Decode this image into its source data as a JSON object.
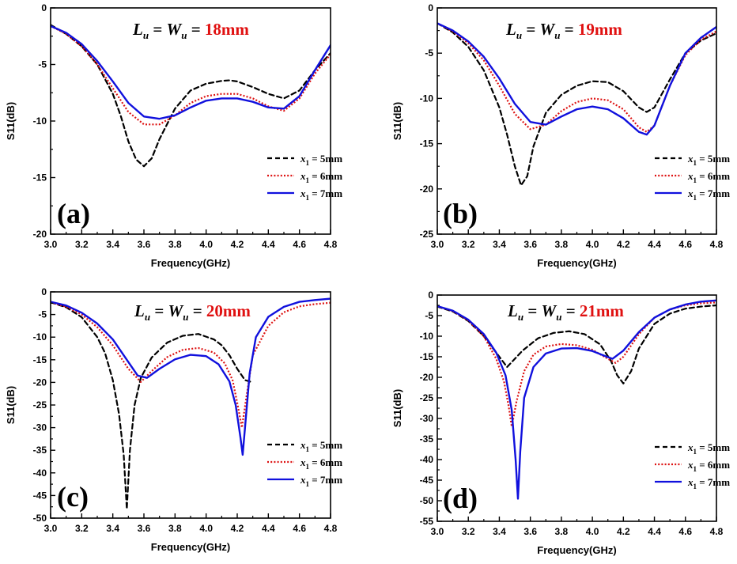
{
  "colors": {
    "axis": "#000000",
    "title_value": "#e01010"
  },
  "chart_data": [
    {
      "type": "line",
      "panel_label": "(a)",
      "title": {
        "lhs_a": "L",
        "lhs_a_sub": "u",
        "eq1": " = ",
        "lhs_b": "W",
        "lhs_b_sub": "u",
        "eq2": " = ",
        "value": "18mm"
      },
      "xlabel": "Frequency(GHz)",
      "ylabel": "S11(dB)",
      "xlim": [
        3.0,
        4.8
      ],
      "ylim": [
        -20,
        0
      ],
      "xticks": [
        3.0,
        3.2,
        3.4,
        3.6,
        3.8,
        4.0,
        4.2,
        4.4,
        4.6,
        4.8
      ],
      "xtick_labels": [
        "3.0",
        "3.2",
        "3.4",
        "3.6",
        "3.8",
        "4.0",
        "4.2",
        "4.4",
        "4.6",
        "4.8"
      ],
      "yticks": [
        0,
        -5,
        -10,
        -15,
        -20
      ],
      "ytick_labels": [
        "0",
        "-5",
        "-10",
        "-15",
        "-20"
      ],
      "legend_position": "bottom-right",
      "series": [
        {
          "name_var": "x",
          "name_sub": "1",
          "name_rest": " = 5mm",
          "color": "#000000",
          "dash": "dashed",
          "x": [
            3.0,
            3.1,
            3.2,
            3.3,
            3.4,
            3.45,
            3.5,
            3.55,
            3.6,
            3.65,
            3.7,
            3.8,
            3.9,
            4.0,
            4.1,
            4.15,
            4.2,
            4.3,
            4.4,
            4.5,
            4.6,
            4.7,
            4.8
          ],
          "y": [
            -1.5,
            -2.3,
            -3.4,
            -5.0,
            -7.6,
            -9.5,
            -11.8,
            -13.4,
            -14.0,
            -13.3,
            -11.6,
            -8.9,
            -7.3,
            -6.7,
            -6.45,
            -6.4,
            -6.5,
            -7.0,
            -7.6,
            -8.0,
            -7.3,
            -5.5,
            -4.0
          ]
        },
        {
          "name_var": "x",
          "name_sub": "1",
          "name_rest": " = 6mm",
          "color": "#dd1111",
          "dash": "dotted",
          "x": [
            3.0,
            3.1,
            3.2,
            3.3,
            3.4,
            3.5,
            3.6,
            3.7,
            3.8,
            3.9,
            4.0,
            4.1,
            4.2,
            4.3,
            4.4,
            4.5,
            4.6,
            4.7,
            4.8
          ],
          "y": [
            -1.6,
            -2.3,
            -3.4,
            -5.0,
            -7.1,
            -9.2,
            -10.3,
            -10.3,
            -9.5,
            -8.4,
            -7.8,
            -7.6,
            -7.6,
            -8.0,
            -8.7,
            -9.1,
            -8.0,
            -5.8,
            -4.1
          ]
        },
        {
          "name_var": "x",
          "name_sub": "1",
          "name_rest": " = 7mm",
          "color": "#1010dd",
          "dash": "solid",
          "x": [
            3.0,
            3.1,
            3.2,
            3.3,
            3.4,
            3.5,
            3.6,
            3.7,
            3.8,
            3.9,
            4.0,
            4.1,
            4.2,
            4.3,
            4.4,
            4.5,
            4.6,
            4.7,
            4.8
          ],
          "y": [
            -1.6,
            -2.2,
            -3.2,
            -4.7,
            -6.5,
            -8.4,
            -9.6,
            -9.8,
            -9.5,
            -8.8,
            -8.2,
            -8.0,
            -8.0,
            -8.3,
            -8.8,
            -8.9,
            -7.8,
            -5.5,
            -3.3
          ]
        }
      ]
    },
    {
      "type": "line",
      "panel_label": "(b)",
      "title": {
        "lhs_a": "L",
        "lhs_a_sub": "u",
        "eq1": " = ",
        "lhs_b": "W",
        "lhs_b_sub": "u",
        "eq2": " = ",
        "value": "19mm"
      },
      "xlabel": "Frequency(GHz)",
      "ylabel": "S11(dB)",
      "xlim": [
        3.0,
        4.8
      ],
      "ylim": [
        -25,
        0
      ],
      "xticks": [
        3.0,
        3.2,
        3.4,
        3.6,
        3.8,
        4.0,
        4.2,
        4.4,
        4.6,
        4.8
      ],
      "xtick_labels": [
        "3.0",
        "3.2",
        "3.4",
        "3.6",
        "3.8",
        "4.0",
        "4.2",
        "4.4",
        "4.6",
        "4.8"
      ],
      "yticks": [
        0,
        -5,
        -10,
        -15,
        -20,
        -25
      ],
      "ytick_labels": [
        "0",
        "-5",
        "-10",
        "-15",
        "-20",
        "-25"
      ],
      "legend_position": "bottom-right",
      "series": [
        {
          "name_var": "x",
          "name_sub": "1",
          "name_rest": " = 5mm",
          "color": "#000000",
          "dash": "dashed",
          "x": [
            3.0,
            3.1,
            3.2,
            3.3,
            3.4,
            3.45,
            3.5,
            3.54,
            3.58,
            3.62,
            3.7,
            3.8,
            3.9,
            4.0,
            4.1,
            4.2,
            4.3,
            4.35,
            4.4,
            4.5,
            4.6,
            4.7,
            4.8
          ],
          "y": [
            -1.7,
            -2.7,
            -4.3,
            -6.9,
            -11.0,
            -14.0,
            -17.5,
            -19.6,
            -18.6,
            -15.3,
            -11.6,
            -9.6,
            -8.6,
            -8.1,
            -8.2,
            -9.2,
            -11.0,
            -11.5,
            -11.0,
            -7.9,
            -5.0,
            -3.6,
            -2.8
          ]
        },
        {
          "name_var": "x",
          "name_sub": "1",
          "name_rest": " = 6mm",
          "color": "#dd1111",
          "dash": "dotted",
          "x": [
            3.0,
            3.1,
            3.2,
            3.3,
            3.4,
            3.5,
            3.6,
            3.7,
            3.8,
            3.9,
            4.0,
            4.1,
            4.2,
            4.3,
            4.35,
            4.4,
            4.5,
            4.6,
            4.7,
            4.8
          ],
          "y": [
            -1.7,
            -2.6,
            -3.9,
            -5.8,
            -8.6,
            -11.7,
            -13.4,
            -12.9,
            -11.4,
            -10.4,
            -10.0,
            -10.2,
            -11.2,
            -13.2,
            -13.7,
            -13.0,
            -8.6,
            -5.2,
            -3.5,
            -2.6
          ]
        },
        {
          "name_var": "x",
          "name_sub": "1",
          "name_rest": " = 7mm",
          "color": "#1010dd",
          "dash": "solid",
          "x": [
            3.0,
            3.1,
            3.2,
            3.3,
            3.4,
            3.5,
            3.6,
            3.7,
            3.8,
            3.9,
            4.0,
            4.1,
            4.2,
            4.3,
            4.35,
            4.4,
            4.5,
            4.6,
            4.7,
            4.8
          ],
          "y": [
            -1.7,
            -2.5,
            -3.7,
            -5.4,
            -7.8,
            -10.6,
            -12.6,
            -12.9,
            -12.0,
            -11.2,
            -10.9,
            -11.2,
            -12.2,
            -13.7,
            -14.0,
            -13.0,
            -8.6,
            -5.0,
            -3.3,
            -2.1
          ]
        }
      ]
    },
    {
      "type": "line",
      "panel_label": "(c)",
      "title": {
        "lhs_a": "L",
        "lhs_a_sub": "u",
        "eq1": " = ",
        "lhs_b": "W",
        "lhs_b_sub": "u",
        "eq2": " = ",
        "value": "20mm"
      },
      "xlabel": "Frequency(GHz)",
      "ylabel": "S11(dB)",
      "xlim": [
        3.0,
        4.8
      ],
      "ylim": [
        -50,
        0
      ],
      "xticks": [
        3.0,
        3.2,
        3.4,
        3.6,
        3.8,
        4.0,
        4.2,
        4.4,
        4.6,
        4.8
      ],
      "xtick_labels": [
        "3.0",
        "3.2",
        "3.4",
        "3.6",
        "3.8",
        "4.0",
        "4.2",
        "4.4",
        "4.6",
        "4.8"
      ],
      "yticks": [
        0,
        -5,
        -10,
        -15,
        -20,
        -25,
        -30,
        -35,
        -40,
        -45,
        -50
      ],
      "ytick_labels": [
        "0",
        "-5",
        "-10",
        "-15",
        "-20",
        "-25",
        "-30",
        "-35",
        "-40",
        "-45",
        "-50"
      ],
      "legend_position": "bottom-right",
      "series": [
        {
          "name_var": "x",
          "name_sub": "1",
          "name_rest": " = 5mm",
          "color": "#000000",
          "dash": "dashed",
          "x": [
            3.0,
            3.1,
            3.2,
            3.3,
            3.35,
            3.4,
            3.44,
            3.47,
            3.49,
            3.51,
            3.54,
            3.58,
            3.65,
            3.75,
            3.85,
            3.95,
            4.05,
            4.1,
            4.15,
            4.2,
            4.25,
            4.3
          ],
          "y": [
            -2.3,
            -3.4,
            -5.6,
            -10.0,
            -13.5,
            -19.5,
            -27.0,
            -36.0,
            -48.0,
            -35.0,
            -25.0,
            -19.0,
            -14.5,
            -11.2,
            -9.7,
            -9.3,
            -10.5,
            -11.8,
            -14.0,
            -17.0,
            -19.5,
            -20.0
          ]
        },
        {
          "name_var": "x",
          "name_sub": "1",
          "name_rest": " = 6mm",
          "color": "#dd1111",
          "dash": "dotted",
          "x": [
            3.0,
            3.1,
            3.2,
            3.3,
            3.4,
            3.5,
            3.58,
            3.65,
            3.75,
            3.85,
            3.95,
            4.05,
            4.12,
            4.17,
            4.2,
            4.23,
            4.26,
            4.3,
            4.4,
            4.5,
            4.6,
            4.7,
            4.8
          ],
          "y": [
            -2.3,
            -3.3,
            -5.0,
            -7.8,
            -11.8,
            -17.0,
            -19.9,
            -17.5,
            -14.4,
            -12.8,
            -12.4,
            -13.4,
            -15.8,
            -19.5,
            -24.5,
            -30.0,
            -23.0,
            -14.0,
            -7.5,
            -4.5,
            -3.2,
            -2.7,
            -2.4
          ]
        },
        {
          "name_var": "x",
          "name_sub": "1",
          "name_rest": " = 7mm",
          "color": "#1010dd",
          "dash": "solid",
          "x": [
            3.0,
            3.1,
            3.2,
            3.3,
            3.4,
            3.5,
            3.56,
            3.62,
            3.7,
            3.8,
            3.9,
            4.0,
            4.08,
            4.15,
            4.19,
            4.22,
            4.235,
            4.25,
            4.28,
            4.32,
            4.4,
            4.5,
            4.6,
            4.7,
            4.8
          ],
          "y": [
            -2.2,
            -3.0,
            -4.6,
            -7.0,
            -10.5,
            -15.5,
            -18.5,
            -19.0,
            -17.0,
            -14.9,
            -13.9,
            -14.2,
            -16.0,
            -19.8,
            -25.0,
            -32.0,
            -36.0,
            -30.0,
            -18.0,
            -10.0,
            -5.5,
            -3.3,
            -2.2,
            -1.8,
            -1.5
          ]
        }
      ]
    },
    {
      "type": "line",
      "panel_label": "(d)",
      "title": {
        "lhs_a": "L",
        "lhs_a_sub": "u",
        "eq1": " = ",
        "lhs_b": "W",
        "lhs_b_sub": "u",
        "eq2": " = ",
        "value": "21mm"
      },
      "xlabel": "Frequency(GHz)",
      "ylabel": "S11(dB)",
      "xlim": [
        3.0,
        4.8
      ],
      "ylim": [
        -55,
        0
      ],
      "xticks": [
        3.0,
        3.2,
        3.4,
        3.6,
        3.8,
        4.0,
        4.2,
        4.4,
        4.6,
        4.8
      ],
      "xtick_labels": [
        "3.0",
        "3.2",
        "3.4",
        "3.6",
        "3.8",
        "4.0",
        "4.2",
        "4.4",
        "4.6",
        "4.8"
      ],
      "yticks": [
        0,
        -5,
        -10,
        -15,
        -20,
        -25,
        -30,
        -35,
        -40,
        -45,
        -50,
        -55
      ],
      "ytick_labels": [
        "0",
        "-5",
        "-10",
        "-15",
        "-20",
        "-25",
        "-30",
        "-35",
        "-40",
        "-45",
        "-50",
        "-55"
      ],
      "legend_position": "bottom-right",
      "series": [
        {
          "name_var": "x",
          "name_sub": "1",
          "name_rest": " = 5mm",
          "color": "#000000",
          "dash": "dashed",
          "x": [
            3.0,
            3.1,
            3.2,
            3.3,
            3.4,
            3.45,
            3.55,
            3.65,
            3.75,
            3.85,
            3.95,
            4.05,
            4.12,
            4.16,
            4.2,
            4.25,
            4.3,
            4.4,
            4.5,
            4.6,
            4.7,
            4.8
          ],
          "y": [
            -2.8,
            -4.0,
            -6.3,
            -10.0,
            -15.0,
            -17.5,
            -13.5,
            -10.5,
            -9.2,
            -8.8,
            -9.5,
            -12.0,
            -16.0,
            -19.5,
            -21.5,
            -18.5,
            -13.0,
            -7.0,
            -4.5,
            -3.3,
            -2.8,
            -2.5
          ]
        },
        {
          "name_var": "x",
          "name_sub": "1",
          "name_rest": " = 6mm",
          "color": "#dd1111",
          "dash": "dotted",
          "x": [
            3.0,
            3.1,
            3.2,
            3.3,
            3.38,
            3.43,
            3.46,
            3.48,
            3.51,
            3.56,
            3.62,
            3.7,
            3.8,
            3.9,
            4.0,
            4.1,
            4.15,
            4.2,
            4.3,
            4.4,
            4.5,
            4.6,
            4.7,
            4.8
          ],
          "y": [
            -2.7,
            -3.9,
            -6.2,
            -10.0,
            -15.5,
            -21.0,
            -27.0,
            -32.0,
            -26.0,
            -18.5,
            -14.5,
            -12.5,
            -11.9,
            -12.2,
            -13.3,
            -15.5,
            -16.5,
            -15.0,
            -9.5,
            -5.5,
            -3.5,
            -2.5,
            -2.0,
            -1.8
          ]
        },
        {
          "name_var": "x",
          "name_sub": "1",
          "name_rest": " = 7mm",
          "color": "#1010dd",
          "dash": "solid",
          "x": [
            3.0,
            3.1,
            3.2,
            3.3,
            3.38,
            3.44,
            3.48,
            3.505,
            3.52,
            3.535,
            3.56,
            3.62,
            3.7,
            3.8,
            3.9,
            4.0,
            4.08,
            4.13,
            4.2,
            4.3,
            4.4,
            4.5,
            4.6,
            4.7,
            4.8
          ],
          "y": [
            -2.7,
            -3.8,
            -6.0,
            -9.5,
            -14.0,
            -19.5,
            -28.0,
            -40.0,
            -49.5,
            -38.0,
            -25.0,
            -17.5,
            -14.2,
            -13.0,
            -12.9,
            -13.6,
            -14.8,
            -15.5,
            -13.5,
            -9.0,
            -5.5,
            -3.5,
            -2.3,
            -1.6,
            -1.3
          ]
        }
      ]
    }
  ]
}
